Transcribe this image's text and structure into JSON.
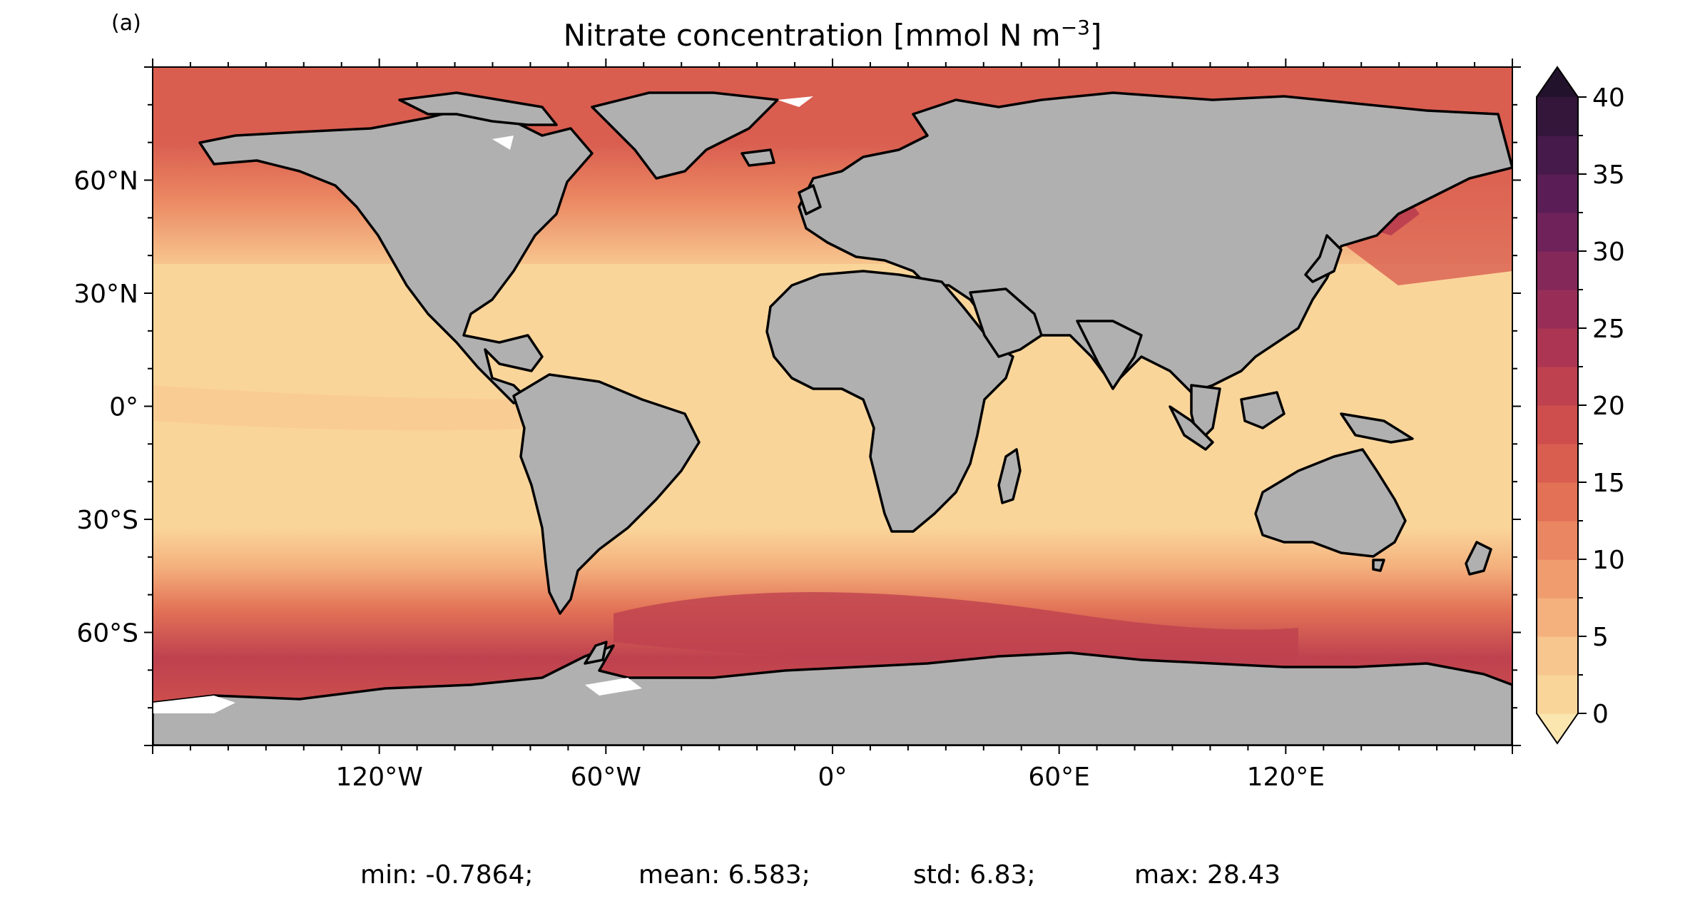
{
  "panel_label": "(a)",
  "title": "Nitrate concentration [mmol N m",
  "title_exponent": "−3",
  "title_close": "]",
  "map": {
    "projection": "PlateCarree",
    "lon_range": [
      -180,
      180
    ],
    "lat_range": [
      -90,
      90
    ],
    "land_color": "#b0b0b0",
    "missing_color": "#ffffff",
    "x_ticks": [
      {
        "lon": -120,
        "label": "120°W"
      },
      {
        "lon": -60,
        "label": "60°W"
      },
      {
        "lon": 0,
        "label": "0°"
      },
      {
        "lon": 60,
        "label": "60°E"
      },
      {
        "lon": 120,
        "label": "120°E"
      }
    ],
    "y_ticks": [
      {
        "lat": 60,
        "label": "60°N"
      },
      {
        "lat": 30,
        "label": "30°N"
      },
      {
        "lat": 0,
        "label": "0°"
      },
      {
        "lat": -30,
        "label": "30°S"
      },
      {
        "lat": -60,
        "label": "60°S"
      }
    ]
  },
  "colorbar": {
    "min": 0,
    "max": 40,
    "step": 2.5,
    "extend": "both",
    "colors": [
      "#fbe6b0",
      "#fad59a",
      "#f7c58e",
      "#f4b07d",
      "#f09c6e",
      "#ea8661",
      "#e27156",
      "#d95e50",
      "#cd4e4c",
      "#be414f",
      "#ac3553",
      "#982e58",
      "#84285a",
      "#6f225a",
      "#5a1d55",
      "#461a4a",
      "#33163a",
      "#22122b"
    ],
    "ticks": [
      {
        "value": 0,
        "label": "0"
      },
      {
        "value": 5,
        "label": "5"
      },
      {
        "value": 10,
        "label": "10"
      },
      {
        "value": 15,
        "label": "15"
      },
      {
        "value": 20,
        "label": "20"
      },
      {
        "value": 25,
        "label": "25"
      },
      {
        "value": 30,
        "label": "30"
      },
      {
        "value": 35,
        "label": "35"
      },
      {
        "value": 40,
        "label": "40"
      }
    ]
  },
  "stats": {
    "min": "min: -0.7864;",
    "mean": "mean: 6.583;",
    "std": "std: 6.83;",
    "max": "max: 28.43"
  }
}
